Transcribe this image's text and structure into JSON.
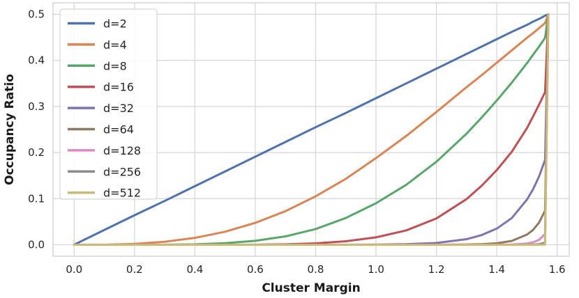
{
  "chart_data": {
    "type": "line",
    "xlabel": "Cluster Margin",
    "ylabel": "Occupancy Ratio",
    "xlim": [
      -0.07,
      1.64
    ],
    "ylim": [
      -0.025,
      0.525
    ],
    "xticks": [
      0.0,
      0.2,
      0.4,
      0.6,
      0.8,
      1.0,
      1.2,
      1.4,
      1.6
    ],
    "xtick_labels": [
      "0.0",
      "0.2",
      "0.4",
      "0.6",
      "0.8",
      "1.0",
      "1.2",
      "1.4",
      "1.6"
    ],
    "yticks": [
      0.0,
      0.1,
      0.2,
      0.3,
      0.4,
      0.5
    ],
    "ytick_labels": [
      "0.0",
      "0.1",
      "0.2",
      "0.3",
      "0.4",
      "0.5"
    ],
    "grid": true,
    "legend_position": "top-left",
    "x": [
      0.0,
      0.1,
      0.2,
      0.3,
      0.4,
      0.5,
      0.6,
      0.7,
      0.8,
      0.9,
      1.0,
      1.1,
      1.2,
      1.3,
      1.35,
      1.4,
      1.45,
      1.5,
      1.52,
      1.54,
      1.56,
      1.5708
    ],
    "series": [
      {
        "name": "d=2",
        "color": "#4c72b0",
        "values": [
          0.0,
          0.032,
          0.064,
          0.095,
          0.127,
          0.159,
          0.191,
          0.223,
          0.255,
          0.286,
          0.318,
          0.35,
          0.382,
          0.414,
          0.43,
          0.446,
          0.462,
          0.477,
          0.484,
          0.49,
          0.497,
          0.5
        ]
      },
      {
        "name": "d=4",
        "color": "#dd8452",
        "values": [
          0.0,
          0.0002,
          0.0019,
          0.0064,
          0.0148,
          0.0282,
          0.0474,
          0.0728,
          0.105,
          0.143,
          0.188,
          0.236,
          0.288,
          0.342,
          0.368,
          0.395,
          0.422,
          0.449,
          0.459,
          0.47,
          0.481,
          0.5
        ]
      },
      {
        "name": "d=8",
        "color": "#55a868",
        "values": [
          0.0,
          0.0,
          0.0,
          0.0001,
          0.0009,
          0.0033,
          0.0085,
          0.018,
          0.034,
          0.058,
          0.09,
          0.13,
          0.18,
          0.241,
          0.276,
          0.313,
          0.352,
          0.394,
          0.412,
          0.43,
          0.449,
          0.5
        ]
      },
      {
        "name": "d=16",
        "color": "#c44e52",
        "values": [
          0.0,
          0.0,
          0.0,
          0.0,
          0.0,
          0.0,
          0.0002,
          0.0009,
          0.003,
          0.0075,
          0.016,
          0.031,
          0.057,
          0.099,
          0.128,
          0.162,
          0.202,
          0.253,
          0.278,
          0.304,
          0.331,
          0.5
        ]
      },
      {
        "name": "d=32",
        "color": "#8172b3",
        "values": [
          0.0,
          0.0,
          0.0,
          0.0,
          0.0,
          0.0,
          0.0,
          0.0,
          0.0,
          0.0,
          0.0004,
          0.0012,
          0.0038,
          0.012,
          0.021,
          0.035,
          0.058,
          0.098,
          0.12,
          0.148,
          0.184,
          0.5
        ]
      },
      {
        "name": "d=64",
        "color": "#937860",
        "values": [
          0.0,
          0.0,
          0.0,
          0.0,
          0.0,
          0.0,
          0.0,
          0.0,
          0.0,
          0.0,
          0.0,
          0.0,
          0.0001,
          0.0005,
          0.0012,
          0.0032,
          0.0082,
          0.022,
          0.032,
          0.048,
          0.074,
          0.5
        ]
      },
      {
        "name": "d=128",
        "color": "#da8bc3",
        "values": [
          0.0,
          0.0,
          0.0,
          0.0,
          0.0,
          0.0,
          0.0,
          0.0,
          0.0,
          0.0,
          0.0,
          0.0,
          0.0,
          0.0,
          0.0,
          0.0001,
          0.0005,
          0.0026,
          0.0052,
          0.0105,
          0.023,
          0.5
        ]
      },
      {
        "name": "d=256",
        "color": "#8c8c8c",
        "values": [
          0.0,
          0.0,
          0.0,
          0.0,
          0.0,
          0.0,
          0.0,
          0.0,
          0.0,
          0.0,
          0.0,
          0.0,
          0.0,
          0.0,
          0.0,
          0.0,
          0.0,
          0.0001,
          0.0004,
          0.0013,
          0.0046,
          0.5
        ]
      },
      {
        "name": "d=512",
        "color": "#ccb974",
        "values": [
          0.0,
          0.0,
          0.0,
          0.0,
          0.0,
          0.0,
          0.0,
          0.0,
          0.0,
          0.0,
          0.0,
          0.0,
          0.0,
          0.0,
          0.0,
          0.0,
          0.0,
          0.0,
          0.0,
          0.0,
          0.0004,
          0.5
        ]
      }
    ]
  }
}
